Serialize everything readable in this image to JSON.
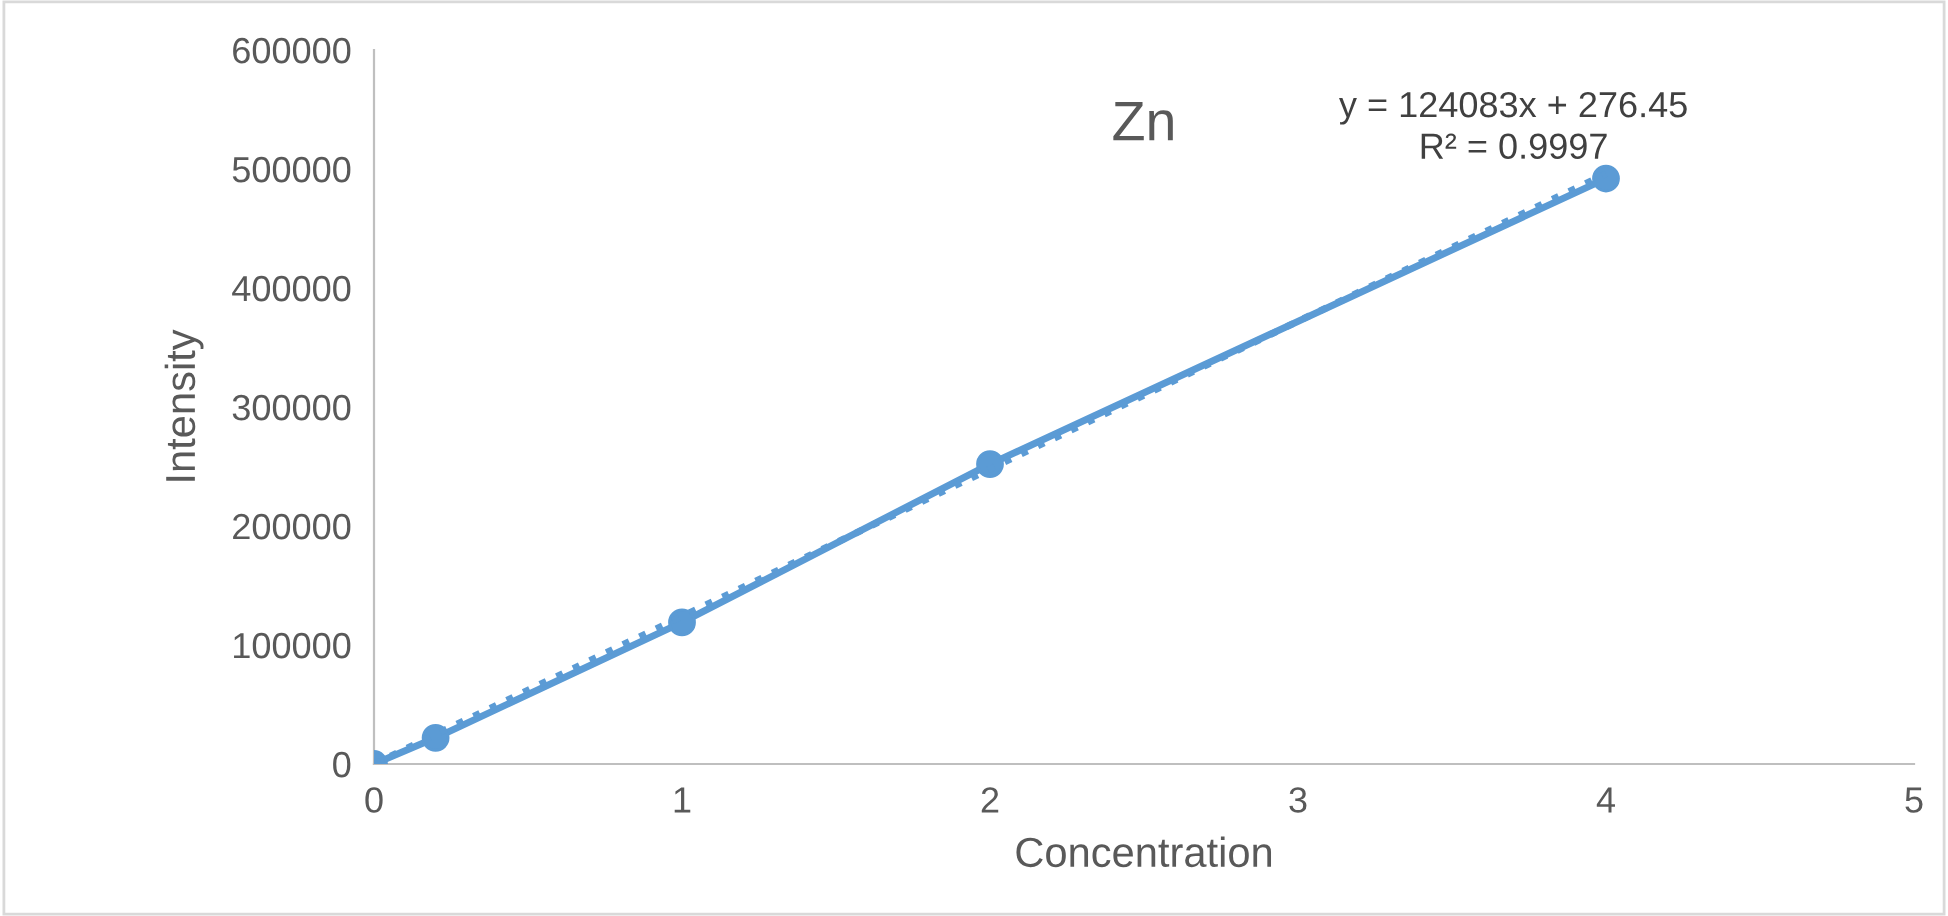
{
  "chart_data": {
    "type": "line",
    "title": "Zn",
    "xlabel": "Concentration",
    "ylabel": "Intensity",
    "xlim": [
      0,
      5
    ],
    "xticks": [
      0,
      1,
      2,
      3,
      4,
      5
    ],
    "ylim": [
      0,
      600000
    ],
    "yticks": [
      0,
      100000,
      200000,
      300000,
      400000,
      500000,
      600000
    ],
    "grid": false,
    "legend": false,
    "series": [
      {
        "color": "#5b9bd5",
        "marker": "circle",
        "line_style": "solid",
        "x": [
          0,
          0.2,
          1,
          2,
          4
        ],
        "values": [
          0,
          22000,
          119000,
          252000,
          492000
        ]
      },
      {
        "type": "line",
        "color": "#5b9bd5",
        "marker": "none",
        "line_style": "dotted",
        "x": [
          0,
          4
        ],
        "values": [
          0,
          496000
        ]
      }
    ],
    "annotations": [
      "y = 124083x + 276.45\nR² = 0.9997"
    ]
  }
}
